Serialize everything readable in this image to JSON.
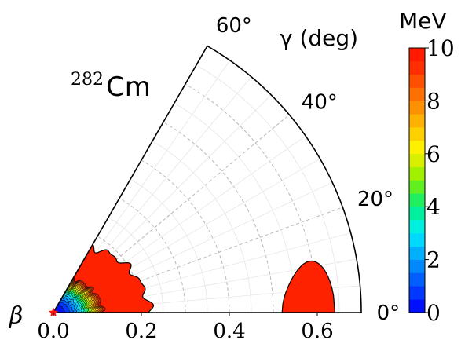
{
  "chart_data": {
    "type": "heatmap",
    "projection": "polar-wedge",
    "title": "",
    "nucleus": {
      "mass_number": "282",
      "element": "Cm"
    },
    "radial_axis": {
      "label": "β",
      "range": [
        0,
        0.7
      ],
      "ticks": [
        0.0,
        0.2,
        0.4,
        0.6
      ],
      "tick_labels": [
        "0.0",
        "0.2",
        "0.4",
        "0.6"
      ]
    },
    "angular_axis": {
      "label": "γ (deg)",
      "range": [
        0,
        60
      ],
      "ticks": [
        0,
        20,
        40,
        60
      ],
      "tick_labels": [
        "0°",
        "20°",
        "40°",
        "60°"
      ]
    },
    "grid": true,
    "colorbar": {
      "title": "MeV",
      "range": [
        0,
        10
      ],
      "ticks": [
        0,
        2,
        4,
        6,
        8,
        10
      ],
      "tick_labels": [
        "0",
        "2",
        "4",
        "6",
        "8",
        "10"
      ],
      "levels": 20,
      "colors": [
        "#0010ff",
        "#0038ff",
        "#0060ff",
        "#0088ff",
        "#00b0ff",
        "#00d8ff",
        "#00f0e0",
        "#00f0a0",
        "#20f060",
        "#60f020",
        "#a0f000",
        "#d8f000",
        "#fff000",
        "#ffd000",
        "#ffb000",
        "#ff9000",
        "#ff7000",
        "#ff5000",
        "#ff3000",
        "#ff1a00"
      ]
    },
    "contour_fill_saturated": "#ff2200",
    "minimum": {
      "beta": 0.0,
      "gamma_deg": 0,
      "marker": "star",
      "color": "#ff1010"
    },
    "regions": [
      {
        "name": "central basin",
        "beta_max_at_gamma0": 0.22,
        "energy_max": 10
      },
      {
        "name": "outer island",
        "beta_range": [
          0.52,
          0.64
        ],
        "gamma_range_deg": [
          0,
          11
        ],
        "energy": 10
      }
    ]
  }
}
